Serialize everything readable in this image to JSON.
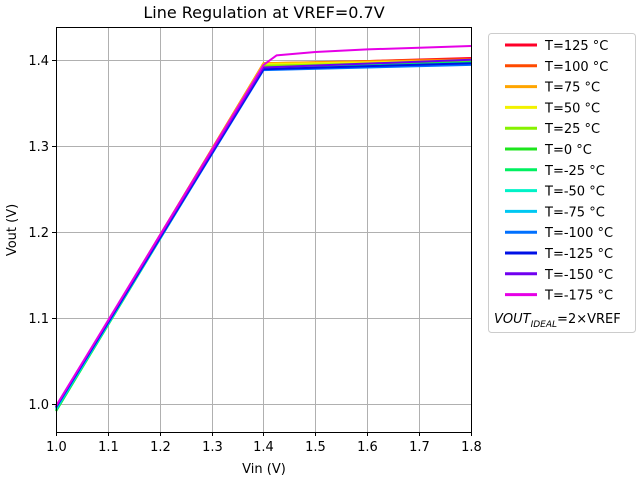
{
  "chart_data": {
    "type": "line",
    "title": "Line Regulation at VREF=0.7V",
    "xlabel": "Vin (V)",
    "ylabel": "Vout (V)",
    "xlim": [
      1.0,
      1.8
    ],
    "ylim": [
      0.968,
      1.438
    ],
    "xticks": [
      1.0,
      1.1,
      1.2,
      1.3,
      1.4,
      1.5,
      1.6,
      1.7,
      1.8
    ],
    "xtick_labels": [
      "1.0",
      "1.1",
      "1.2",
      "1.3",
      "1.4",
      "1.5",
      "1.6",
      "1.7",
      "1.8"
    ],
    "yticks": [
      1.0,
      1.1,
      1.2,
      1.3,
      1.4
    ],
    "ytick_labels": [
      "1.0",
      "1.1",
      "1.2",
      "1.3",
      "1.4"
    ],
    "grid": true,
    "legend_position": "outside-right",
    "series": [
      {
        "name": "T=125 °C",
        "color": "#ff0029",
        "x": [
          1.0,
          1.4,
          1.8
        ],
        "y": [
          0.997,
          1.395,
          1.402
        ]
      },
      {
        "name": "T=100 °C",
        "color": "#ff4a00",
        "x": [
          1.0,
          1.4,
          1.8
        ],
        "y": [
          0.996,
          1.396,
          1.401
        ]
      },
      {
        "name": "T=75 °C",
        "color": "#ffa500",
        "x": [
          1.0,
          1.4,
          1.8
        ],
        "y": [
          0.995,
          1.396,
          1.4
        ]
      },
      {
        "name": "T=50 °C",
        "color": "#f2f200",
        "x": [
          1.0,
          1.4,
          1.8
        ],
        "y": [
          0.994,
          1.395,
          1.399
        ]
      },
      {
        "name": "T=25 °C",
        "color": "#86f200",
        "x": [
          1.0,
          1.4,
          1.8
        ],
        "y": [
          0.993,
          1.393,
          1.398
        ]
      },
      {
        "name": "T=0 °C",
        "color": "#1de51d",
        "x": [
          1.0,
          1.4,
          1.8
        ],
        "y": [
          0.992,
          1.391,
          1.397
        ]
      },
      {
        "name": "T=-25 °C",
        "color": "#00f060",
        "x": [
          1.0,
          1.4,
          1.8
        ],
        "y": [
          0.993,
          1.39,
          1.397
        ]
      },
      {
        "name": "T=-50 °C",
        "color": "#00f2c8",
        "x": [
          1.0,
          1.4,
          1.8
        ],
        "y": [
          0.994,
          1.389,
          1.396
        ]
      },
      {
        "name": "T=-75 °C",
        "color": "#00c8f2",
        "x": [
          1.0,
          1.4,
          1.8
        ],
        "y": [
          0.995,
          1.389,
          1.395
        ]
      },
      {
        "name": "T=-100 °C",
        "color": "#0070ff",
        "x": [
          1.0,
          1.4,
          1.8
        ],
        "y": [
          0.996,
          1.388,
          1.394
        ]
      },
      {
        "name": "T=-125 °C",
        "color": "#0010e6",
        "x": [
          1.0,
          1.4,
          1.8
        ],
        "y": [
          0.997,
          1.389,
          1.396
        ]
      },
      {
        "name": "T=-150 °C",
        "color": "#7000f0",
        "x": [
          1.0,
          1.4,
          1.8
        ],
        "y": [
          0.998,
          1.391,
          1.4
        ]
      },
      {
        "name": "T=-175 °C",
        "color": "#e600e6",
        "x": [
          1.0,
          1.4,
          1.425,
          1.5,
          1.6,
          1.7,
          1.8
        ],
        "y": [
          0.998,
          1.394,
          1.405,
          1.409,
          1.412,
          1.414,
          1.416
        ]
      }
    ],
    "ideal_label": {
      "prefix": "VOUT",
      "subscript": "IDEAL",
      "suffix": "=2×VREF"
    }
  }
}
